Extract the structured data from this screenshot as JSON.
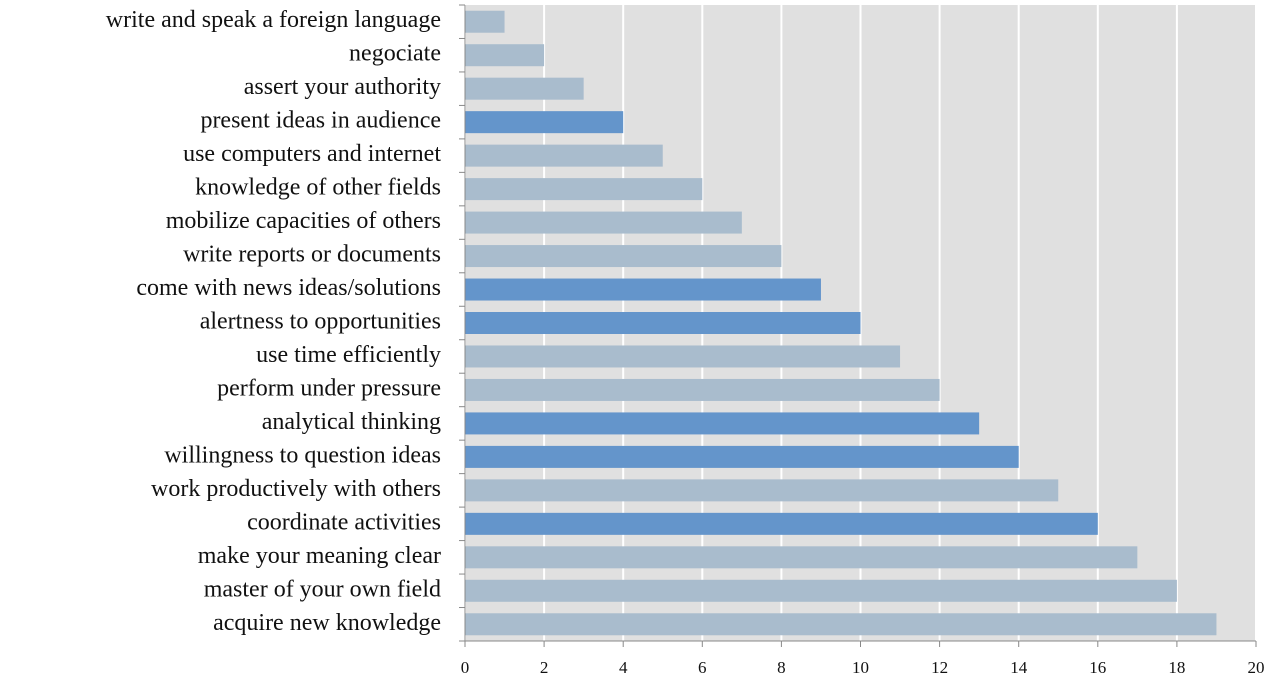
{
  "chart_data": {
    "type": "bar",
    "orientation": "horizontal",
    "categories": [
      "write and speak a foreign language",
      "negociate",
      "assert your authority",
      "present ideas in audience",
      "use computers and internet",
      "knowledge of other fields",
      "mobilize capacities of others",
      "write reports or documents",
      "come with news ideas/solutions",
      "alertness to opportunities",
      "use time efficiently",
      "perform under pressure",
      "analytical thinking",
      "willingness to question ideas",
      "work productively with others",
      "coordinate activities",
      "make your meaning clear",
      "master of your own field",
      "acquire new knowledge"
    ],
    "values": [
      1,
      2,
      3,
      4,
      5,
      6,
      7,
      8,
      9,
      10,
      11,
      12,
      13,
      14,
      15,
      16,
      17,
      18,
      19
    ],
    "colors": [
      "#a9bccd",
      "#a9bccd",
      "#a9bccd",
      "#6495cb",
      "#a9bccd",
      "#a9bccd",
      "#a9bccd",
      "#a9bccd",
      "#6495cb",
      "#6495cb",
      "#a9bccd",
      "#a9bccd",
      "#6495cb",
      "#6495cb",
      "#a9bccd",
      "#6495cb",
      "#a9bccd",
      "#a9bccd",
      "#a9bccd"
    ],
    "xlim": [
      0,
      20
    ],
    "xticks": [
      0,
      2,
      4,
      6,
      8,
      10,
      12,
      14,
      16,
      18,
      20
    ],
    "grid": true
  }
}
